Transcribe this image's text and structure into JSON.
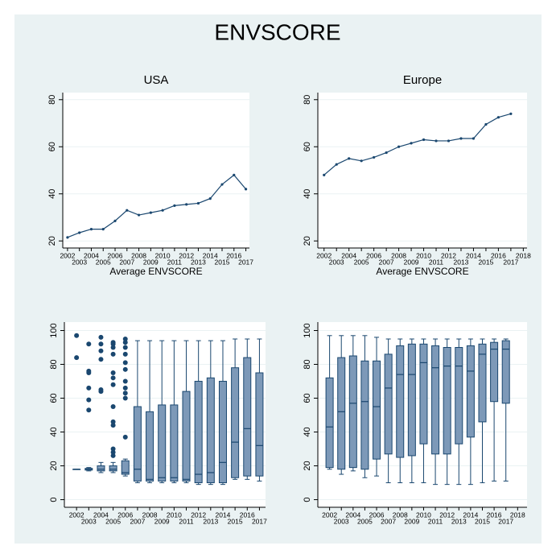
{
  "title": "ENVSCORE",
  "chart_data": [
    {
      "type": "line",
      "title": "USA",
      "x_label": "Average ENVSCORE",
      "color": "#1a476f",
      "x": [
        2002,
        2003,
        2004,
        2005,
        2006,
        2007,
        2008,
        2009,
        2010,
        2011,
        2012,
        2013,
        2014,
        2015,
        2016,
        2017
      ],
      "values": [
        21.5,
        23.5,
        25,
        25,
        28.5,
        33,
        31,
        32,
        33,
        35,
        35.5,
        36,
        38,
        44,
        48,
        42
      ],
      "xlim": [
        2001.6,
        2017.3
      ],
      "xticks": [
        2002,
        2003,
        2004,
        2005,
        2006,
        2007,
        2008,
        2009,
        2010,
        2011,
        2012,
        2013,
        2014,
        2015,
        2016,
        2017
      ],
      "ylim": [
        17,
        83
      ],
      "yticks": [
        20,
        40,
        60,
        80
      ],
      "grid": true
    },
    {
      "type": "line",
      "title": "Europe",
      "x_label": "Average ENVSCORE",
      "color": "#1a476f",
      "x": [
        2002,
        2003,
        2004,
        2005,
        2006,
        2007,
        2008,
        2009,
        2010,
        2011,
        2012,
        2013,
        2014,
        2015,
        2016,
        2017
      ],
      "values": [
        48,
        52.5,
        55,
        54,
        55.5,
        57.5,
        60,
        61.5,
        63,
        62.5,
        62.5,
        63.5,
        63.5,
        69.5,
        72.5,
        74
      ],
      "xlim": [
        2001.5,
        2018.3
      ],
      "xticks": [
        2002,
        2003,
        2004,
        2005,
        2006,
        2007,
        2008,
        2009,
        2010,
        2011,
        2012,
        2013,
        2014,
        2015,
        2016,
        2017,
        2018
      ],
      "ylim": [
        17,
        83
      ],
      "yticks": [
        20,
        40,
        60,
        80
      ],
      "grid": true
    },
    {
      "type": "box",
      "color": "#7d99b8",
      "edge_color": "#1a476f",
      "x": [
        2002,
        2003,
        2004,
        2005,
        2006,
        2007,
        2008,
        2009,
        2010,
        2011,
        2012,
        2013,
        2014,
        2015,
        2016,
        2017
      ],
      "whisker_low": [
        18,
        17,
        16,
        16,
        14,
        10,
        10,
        10,
        10,
        10,
        9,
        9,
        9,
        12,
        12,
        11
      ],
      "q1": [
        18,
        17.5,
        17,
        17,
        15,
        11,
        11,
        11,
        11,
        11,
        10,
        10,
        10,
        13,
        14,
        14
      ],
      "median": [
        18,
        18,
        18,
        18,
        16,
        18,
        12,
        13,
        13,
        12,
        15,
        16,
        22,
        34,
        42,
        32
      ],
      "q3": [
        18,
        18.5,
        20,
        20,
        23,
        55,
        52,
        56,
        56,
        64,
        70,
        72,
        70,
        78,
        84,
        75
      ],
      "whisker_high": [
        18,
        19,
        22,
        22,
        24,
        94,
        94,
        94,
        94,
        94,
        94,
        94,
        94,
        95,
        95,
        95
      ],
      "outliers": [
        [
          84,
          97
        ],
        [
          53,
          59,
          66,
          75,
          76,
          92
        ],
        [
          64,
          65,
          83,
          88,
          92,
          96
        ],
        [
          26,
          28,
          30,
          44,
          46,
          55,
          68,
          72,
          75,
          86,
          90,
          92,
          93
        ],
        [
          37,
          60,
          63,
          66,
          70,
          77,
          81,
          86,
          90,
          93,
          95
        ],
        [],
        [],
        [],
        [],
        [],
        [],
        [],
        [],
        [],
        [],
        []
      ],
      "xlim": [
        2001,
        2017.5
      ],
      "xticks": [
        2002,
        2003,
        2004,
        2005,
        2006,
        2007,
        2008,
        2009,
        2010,
        2011,
        2012,
        2013,
        2014,
        2015,
        2016,
        2017
      ],
      "ylim": [
        -4.5,
        105
      ],
      "yticks": [
        0,
        20,
        40,
        60,
        80,
        100
      ],
      "grid": true
    },
    {
      "type": "box",
      "color": "#7d99b8",
      "edge_color": "#1a476f",
      "x": [
        2002,
        2003,
        2004,
        2005,
        2006,
        2007,
        2008,
        2009,
        2010,
        2011,
        2012,
        2013,
        2014,
        2015,
        2016,
        2017
      ],
      "whisker_low": [
        18,
        15,
        17,
        13,
        14,
        10,
        10,
        10,
        10,
        9,
        9,
        9,
        9,
        10,
        11,
        11
      ],
      "q1": [
        19,
        18,
        19,
        18,
        24,
        27,
        25,
        26,
        33,
        27,
        27,
        33,
        37,
        46,
        58,
        57
      ],
      "median": [
        43,
        52,
        57,
        58,
        55,
        66,
        74,
        74,
        81,
        78,
        79,
        79,
        76,
        86,
        89,
        89
      ],
      "q3": [
        72,
        84,
        85,
        82,
        82,
        86,
        91,
        92,
        92,
        91,
        90,
        90,
        91,
        92,
        93,
        94
      ],
      "whisker_high": [
        97,
        97,
        97,
        97,
        96,
        95,
        95,
        95,
        95,
        95,
        95,
        95,
        95,
        95,
        95,
        95
      ],
      "outliers": [
        [],
        [],
        [],
        [],
        [],
        [],
        [],
        [],
        [],
        [],
        [],
        [],
        [],
        [],
        [],
        []
      ],
      "xlim": [
        2001,
        2018.8
      ],
      "xticks": [
        2002,
        2003,
        2004,
        2005,
        2006,
        2007,
        2008,
        2009,
        2010,
        2011,
        2012,
        2013,
        2014,
        2015,
        2016,
        2017,
        2018
      ],
      "ylim": [
        -4.5,
        105
      ],
      "yticks": [
        0,
        20,
        40,
        60,
        80,
        100
      ],
      "grid": true
    }
  ]
}
